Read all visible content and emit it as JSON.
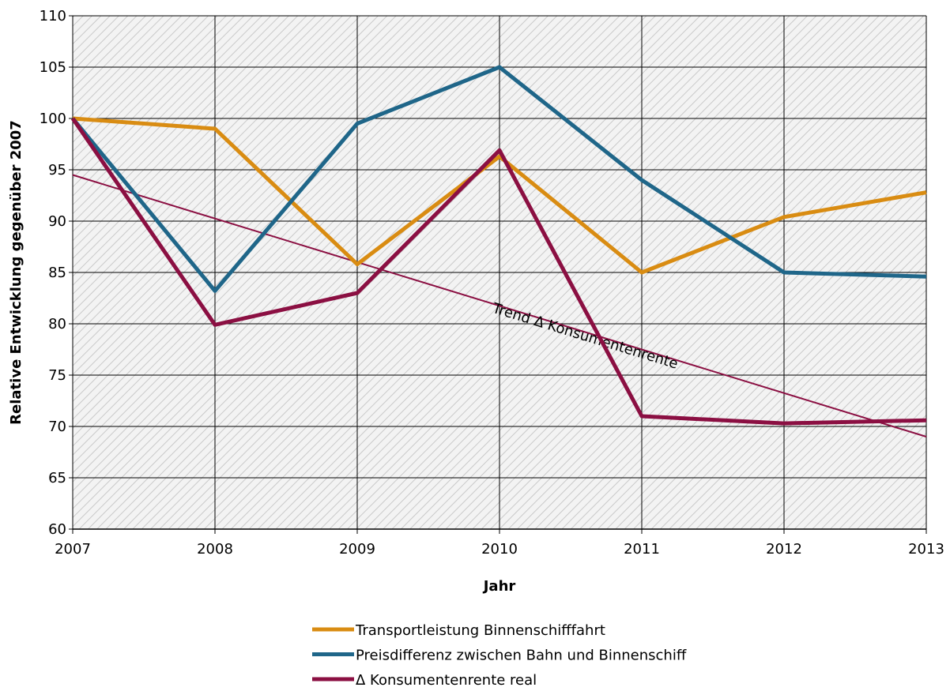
{
  "chart_data": {
    "type": "line",
    "x_label": "Jahr",
    "y_label": "Relative Entwicklung gegenüber 2007",
    "x": [
      2007,
      2008,
      2009,
      2010,
      2011,
      2012,
      2013
    ],
    "xlim": [
      2007,
      2013
    ],
    "xticks": [
      2007,
      2008,
      2009,
      2010,
      2011,
      2012,
      2013
    ],
    "ylim": [
      60,
      110
    ],
    "yticks": [
      60,
      65,
      70,
      75,
      80,
      85,
      90,
      95,
      100,
      105,
      110
    ],
    "grid": true,
    "legend": "bottom",
    "series": [
      {
        "name": "Transportleistung Binnenschifffahrt",
        "color": "#d98c12",
        "values": [
          100,
          99,
          85.8,
          96.3,
          85,
          90.4,
          92.8
        ]
      },
      {
        "name": "Preisdifferenz zwischen Bahn und Binnenschiff",
        "color": "#1f6689",
        "values": [
          100,
          83.2,
          99.5,
          105,
          94,
          85,
          84.6
        ]
      },
      {
        "name": "Δ Konsumentenrente real",
        "color": "#8b0f42",
        "values": [
          100,
          79.9,
          83,
          96.9,
          71,
          70.3,
          70.6
        ]
      }
    ],
    "trend": {
      "label": "Trend Δ Konsumentenrente",
      "color": "#8b0f42",
      "x": [
        2007,
        2013
      ],
      "values": [
        94.5,
        69
      ]
    }
  }
}
